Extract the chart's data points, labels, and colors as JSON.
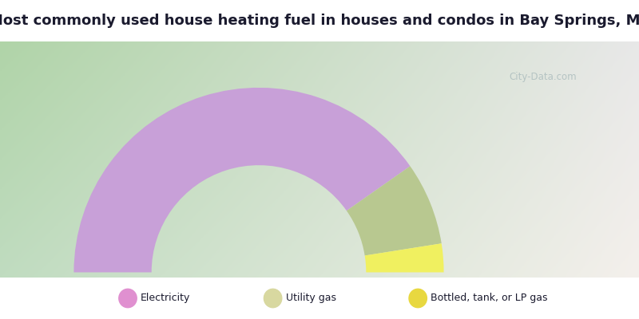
{
  "title": "Most commonly used house heating fuel in houses and condos in Bay Springs, MS",
  "title_fontsize": 13,
  "title_color": "#1a1a2e",
  "segments": [
    {
      "label": "Electricity",
      "value": 80.5,
      "color": "#c8a0d8"
    },
    {
      "label": "Utility gas",
      "value": 14.5,
      "color": "#b8c890"
    },
    {
      "label": "Bottled, tank, or LP gas",
      "value": 5.0,
      "color": "#f0f060"
    }
  ],
  "legend_colors": [
    "#e090d0",
    "#d8d8a0",
    "#e8d840"
  ],
  "legend_text_color": "#1a1a2e",
  "bg_title_color": "#00e8f8",
  "bg_chart_top_left": "#b8d8b0",
  "bg_chart_center": "#f0ece8",
  "bg_legend_color": "#00e8f8",
  "watermark": "City-Data.com",
  "watermark_color": "#b0c0c0"
}
